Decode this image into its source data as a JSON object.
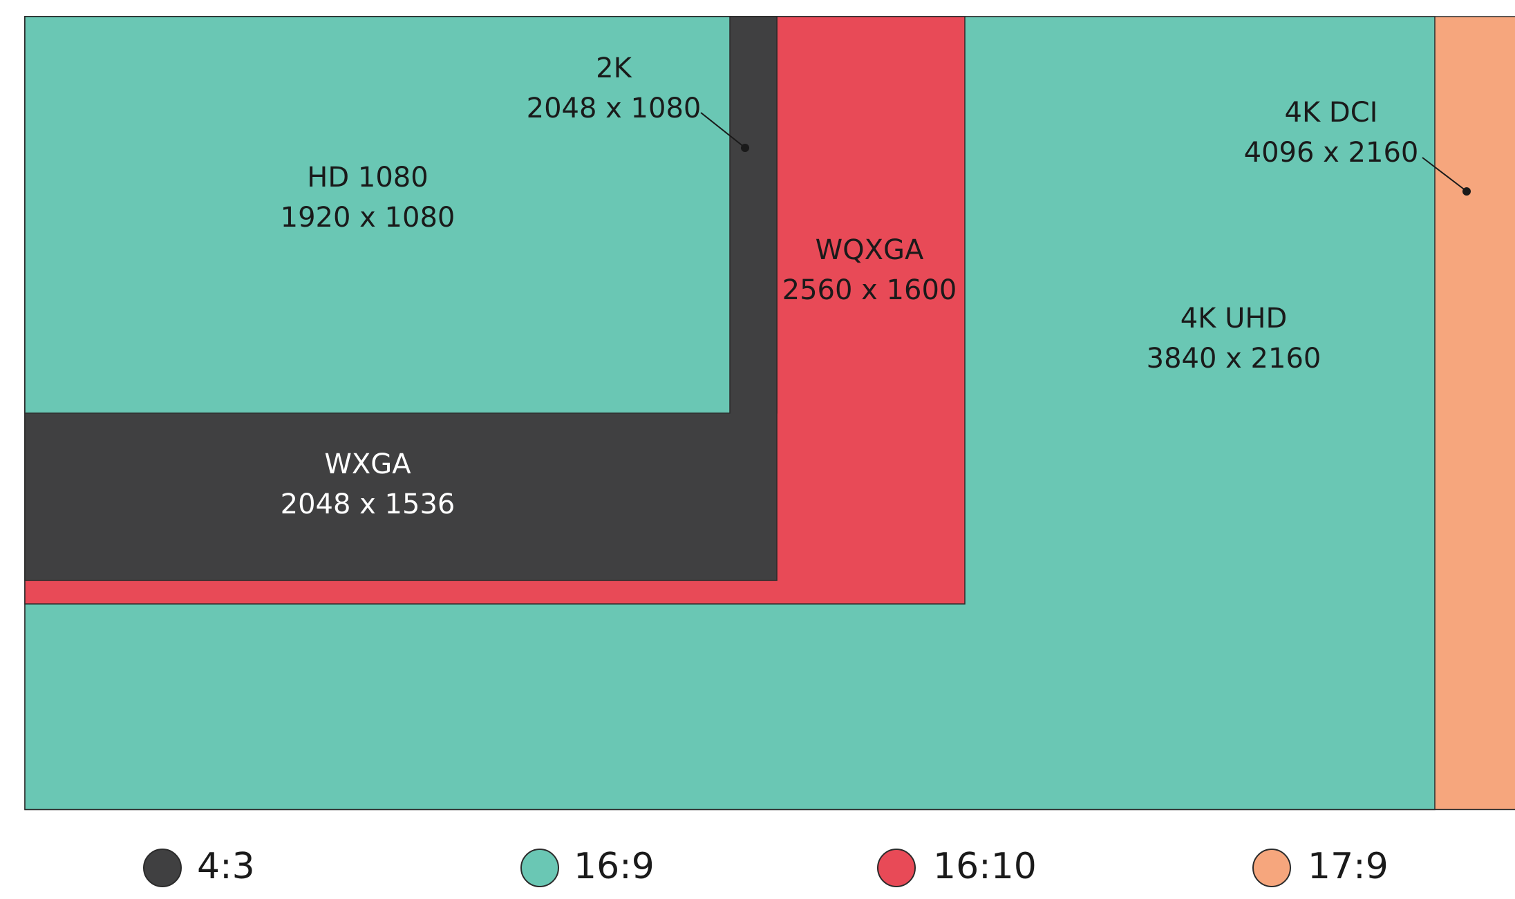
{
  "colors": {
    "ratio_4_3": "#404041",
    "ratio_16_9": "#6ac7b4",
    "ratio_16_10": "#e84a57",
    "ratio_17_9": "#f6a67d",
    "outline": "#2b2b2b",
    "text_dark": "#1a1a1a",
    "text_light": "#ffffff"
  },
  "resolutions": [
    {
      "id": "4k-uhd",
      "name": "4K UHD",
      "dims": "3840 x 2160",
      "width": 3840,
      "height": 2160,
      "ratio": "16:9"
    },
    {
      "id": "4k-dci",
      "name": "4K DCI",
      "dims": "4096 x 2160",
      "width": 4096,
      "height": 2160,
      "ratio": "17:9"
    },
    {
      "id": "wqxga",
      "name": "WQXGA",
      "dims": "2560 x 1600",
      "width": 2560,
      "height": 1600,
      "ratio": "16:10"
    },
    {
      "id": "2k",
      "name": "2K",
      "dims": "2048 x 1080",
      "width": 2048,
      "height": 1080,
      "ratio": "17:9"
    },
    {
      "id": "wxga",
      "name": "WXGA",
      "dims": "2048 x 1536",
      "width": 2048,
      "height": 1536,
      "ratio": "4:3"
    },
    {
      "id": "hd-1080",
      "name": "HD 1080",
      "dims": "1920 x 1080",
      "width": 1920,
      "height": 1080,
      "ratio": "16:9"
    }
  ],
  "legend": [
    {
      "label": "4:3",
      "color": "#404041"
    },
    {
      "label": "16:9",
      "color": "#6ac7b4"
    },
    {
      "label": "16:10",
      "color": "#e84a57"
    },
    {
      "label": "17:9",
      "color": "#f6a67d"
    }
  ]
}
